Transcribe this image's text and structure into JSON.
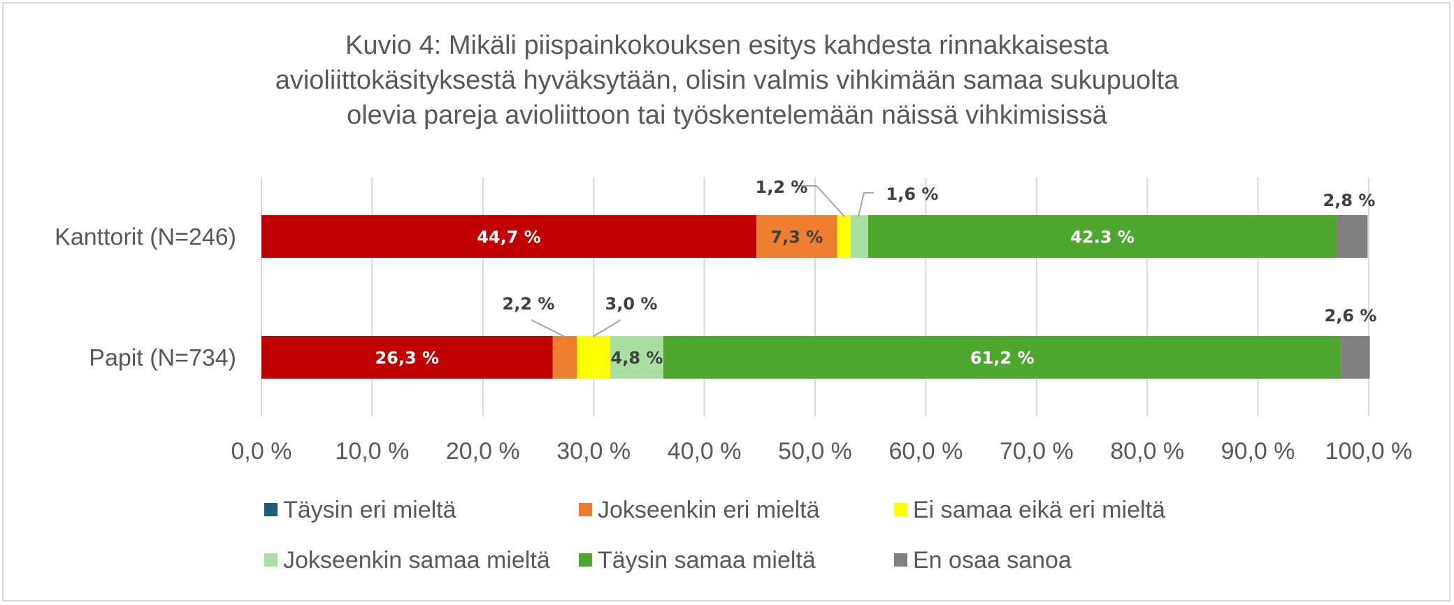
{
  "chart_data": {
    "type": "bar",
    "orientation": "horizontal",
    "stacked": true,
    "title_lines": [
      "Kuvio 4: Mikäli piispainkokouksen esitys kahdesta rinnakkaisesta",
      "avioliittokäsityksestä hyväksytään, olisin valmis vihkimään samaa sukupuolta",
      "olevia pareja avioliittoon tai työskentelemään näissä vihkimisissä"
    ],
    "categories": [
      "Kanttorit (N=246)",
      "Papit (N=734)"
    ],
    "series": [
      {
        "name": "Täysin eri mieltä",
        "color": "#C00000",
        "legend_color": "#1F5C7A",
        "values": [
          44.7,
          26.3
        ],
        "labels": [
          "44,7 %",
          "26,3 %"
        ]
      },
      {
        "name": "Jokseenkin eri mieltä",
        "color": "#ED7D31",
        "values": [
          7.3,
          2.2
        ],
        "labels": [
          "7,3 %",
          "2,2 %"
        ]
      },
      {
        "name": "Ei samaa eikä eri mieltä",
        "color": "#FFFF00",
        "values": [
          1.2,
          3.0
        ],
        "labels": [
          "1,2 %",
          "3,0 %"
        ]
      },
      {
        "name": "Jokseenkin samaa mieltä",
        "color": "#A9DFA0",
        "values": [
          1.6,
          4.8
        ],
        "labels": [
          "1,6 %",
          "4,8 %"
        ]
      },
      {
        "name": "Täysin samaa mieltä",
        "color": "#4EA72E",
        "values": [
          42.3,
          61.2
        ],
        "labels": [
          "42.3 %",
          "61,2 %"
        ]
      },
      {
        "name": "En osaa sanoa",
        "color": "#808080",
        "values": [
          2.8,
          2.6
        ],
        "labels": [
          "2,8 %",
          "2,6 %"
        ]
      }
    ],
    "xlim": [
      0,
      100
    ],
    "x_ticks": [
      "0,0 %",
      "10,0 %",
      "20,0 %",
      "30,0 %",
      "40,0 %",
      "50,0 %",
      "60,0 %",
      "70,0 %",
      "80,0 %",
      "90,0 %",
      "100,0 %"
    ],
    "grid": true,
    "legend_position": "bottom"
  }
}
